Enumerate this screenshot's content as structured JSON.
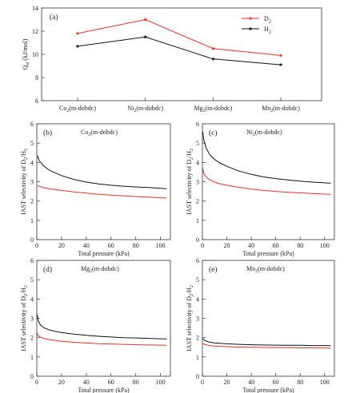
{
  "chart_data": [
    {
      "type": "line",
      "panel_label": "(a)",
      "categories": [
        "Co₂(m-dobdc)",
        "Ni₂(m-dobdc)",
        "Mg₂(m-dobdc)",
        "Mn₂(m-dobdc)"
      ],
      "series": [
        {
          "name": "D₂",
          "values": [
            11.8,
            13.0,
            10.5,
            9.9
          ],
          "color": "#e8302c",
          "marker": "star"
        },
        {
          "name": "H₂",
          "values": [
            10.7,
            11.5,
            9.6,
            9.1
          ],
          "color": "#111111",
          "marker": "star"
        }
      ],
      "ylabel": "Qₛₜ (kJ/mol)",
      "ylim": [
        6,
        14
      ],
      "yticks": [
        "6",
        "8",
        "10",
        "12",
        "14"
      ],
      "legend": "top-right",
      "grid": false
    },
    {
      "type": "line",
      "panel_label": "(b)",
      "title": "Co₂(m-dobdc)",
      "xlabel": "Total pressure (kPa)",
      "ylabel": "IAST selectivity of D₂/H₂",
      "xlim": [
        0,
        108
      ],
      "ylim": [
        0,
        6
      ],
      "xticks": [
        "0",
        "20",
        "40",
        "60",
        "80",
        "100"
      ],
      "yticks": [
        "0",
        "1",
        "2",
        "3",
        "4",
        "5",
        "6"
      ],
      "series": [
        {
          "color": "#111111",
          "x": [
            0.5,
            2,
            5,
            10,
            15,
            20,
            30,
            40,
            50,
            60,
            70,
            80,
            90,
            100,
            105
          ],
          "y": [
            4.35,
            4.1,
            3.85,
            3.6,
            3.45,
            3.32,
            3.12,
            2.98,
            2.89,
            2.82,
            2.77,
            2.73,
            2.7,
            2.66,
            2.64
          ]
        },
        {
          "color": "#e8302c",
          "x": [
            0.5,
            2,
            5,
            10,
            20,
            30,
            40,
            50,
            60,
            70,
            80,
            90,
            100,
            105
          ],
          "y": [
            2.8,
            2.76,
            2.7,
            2.64,
            2.55,
            2.47,
            2.41,
            2.35,
            2.31,
            2.27,
            2.23,
            2.2,
            2.17,
            2.15
          ]
        }
      ]
    },
    {
      "type": "line",
      "panel_label": "(c)",
      "title": "Ni₂(m-dobdc)",
      "xlabel": "Total pressure (kPa)",
      "ylabel": "IAST selectivity of D₂/H₂",
      "xlim": [
        0,
        108
      ],
      "ylim": [
        0,
        6
      ],
      "xticks": [
        "0",
        "20",
        "40",
        "60",
        "80",
        "100"
      ],
      "yticks": [
        "0",
        "1",
        "2",
        "3",
        "4",
        "5",
        "6"
      ],
      "series": [
        {
          "color": "#111111",
          "x": [
            0.3,
            1,
            3,
            6,
            10,
            15,
            20,
            30,
            40,
            50,
            60,
            70,
            80,
            90,
            100,
            105
          ],
          "y": [
            5.6,
            5.2,
            4.75,
            4.4,
            4.15,
            3.95,
            3.8,
            3.55,
            3.38,
            3.25,
            3.16,
            3.09,
            3.03,
            2.98,
            2.94,
            2.92
          ]
        },
        {
          "color": "#e8302c",
          "x": [
            0.3,
            1,
            3,
            6,
            10,
            15,
            20,
            30,
            40,
            50,
            60,
            70,
            80,
            90,
            100,
            105
          ],
          "y": [
            3.7,
            3.45,
            3.25,
            3.1,
            2.98,
            2.88,
            2.82,
            2.71,
            2.62,
            2.55,
            2.5,
            2.46,
            2.42,
            2.39,
            2.36,
            2.35
          ]
        }
      ]
    },
    {
      "type": "line",
      "panel_label": "(d)",
      "title": "Mg₂(m-dobdc)",
      "xlabel": "Total pressure (kPa)",
      "ylabel": "IAST selectivity of D₂/H₂",
      "xlim": [
        0,
        108
      ],
      "ylim": [
        0,
        6
      ],
      "xticks": [
        "0",
        "20",
        "40",
        "60",
        "80",
        "100"
      ],
      "yticks": [
        "0",
        "1",
        "2",
        "3",
        "4",
        "5",
        "6"
      ],
      "series": [
        {
          "color": "#111111",
          "x": [
            0.3,
            1,
            3,
            6,
            10,
            15,
            20,
            30,
            40,
            50,
            60,
            70,
            80,
            90,
            100,
            105
          ],
          "y": [
            3.2,
            2.9,
            2.65,
            2.5,
            2.4,
            2.32,
            2.26,
            2.18,
            2.12,
            2.07,
            2.03,
            2.0,
            1.98,
            1.96,
            1.94,
            1.93
          ]
        },
        {
          "color": "#e8302c",
          "x": [
            0.3,
            1,
            3,
            6,
            10,
            15,
            20,
            30,
            40,
            50,
            60,
            70,
            80,
            90,
            100,
            105
          ],
          "y": [
            2.25,
            2.12,
            2.02,
            1.95,
            1.9,
            1.85,
            1.81,
            1.76,
            1.72,
            1.69,
            1.67,
            1.65,
            1.63,
            1.62,
            1.61,
            1.6
          ]
        }
      ]
    },
    {
      "type": "line",
      "panel_label": "(e)",
      "title": "Mn₂(m-dobdc)",
      "xlabel": "Total pressure (kPa)",
      "ylabel": "IAST selectivity of D₂/H₂",
      "xlim": [
        0,
        108
      ],
      "ylim": [
        0,
        6
      ],
      "xticks": [
        "0",
        "20",
        "40",
        "60",
        "80",
        "100"
      ],
      "yticks": [
        "0",
        "1",
        "2",
        "3",
        "4",
        "5",
        "6"
      ],
      "series": [
        {
          "color": "#111111",
          "x": [
            0.3,
            2,
            5,
            10,
            20,
            30,
            40,
            50,
            60,
            70,
            80,
            90,
            100,
            105
          ],
          "y": [
            1.95,
            1.85,
            1.78,
            1.72,
            1.68,
            1.65,
            1.63,
            1.62,
            1.61,
            1.6,
            1.6,
            1.59,
            1.59,
            1.58
          ]
        },
        {
          "color": "#e8302c",
          "x": [
            0.3,
            2,
            5,
            10,
            20,
            30,
            40,
            50,
            60,
            70,
            80,
            90,
            100,
            105
          ],
          "y": [
            1.7,
            1.64,
            1.6,
            1.56,
            1.53,
            1.51,
            1.5,
            1.49,
            1.48,
            1.48,
            1.47,
            1.47,
            1.46,
            1.46
          ]
        }
      ]
    }
  ]
}
